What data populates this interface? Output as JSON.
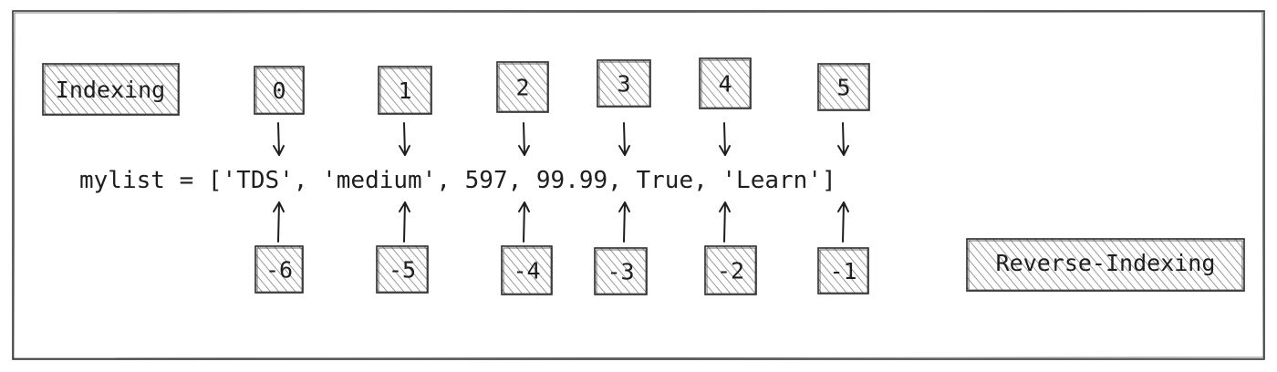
{
  "diagram": {
    "code_line": "mylist = ['TDS', 'medium', 597, 99.99, True, 'Learn']",
    "label_indexing": "Indexing",
    "label_reverse_indexing": "Reverse-Indexing",
    "elements": [
      {
        "value": "'TDS'",
        "index": "0",
        "reverse_index": "-6"
      },
      {
        "value": "'medium'",
        "index": "1",
        "reverse_index": "-5"
      },
      {
        "value": "597",
        "index": "2",
        "reverse_index": "-4"
      },
      {
        "value": "99.99",
        "index": "3",
        "reverse_index": "-3"
      },
      {
        "value": "True",
        "index": "4",
        "reverse_index": "-2"
      },
      {
        "value": "'Learn'",
        "index": "5",
        "reverse_index": "-1"
      }
    ],
    "colors": {
      "hatch": "#9a9a9a",
      "stroke": "#1e1e1e"
    }
  }
}
